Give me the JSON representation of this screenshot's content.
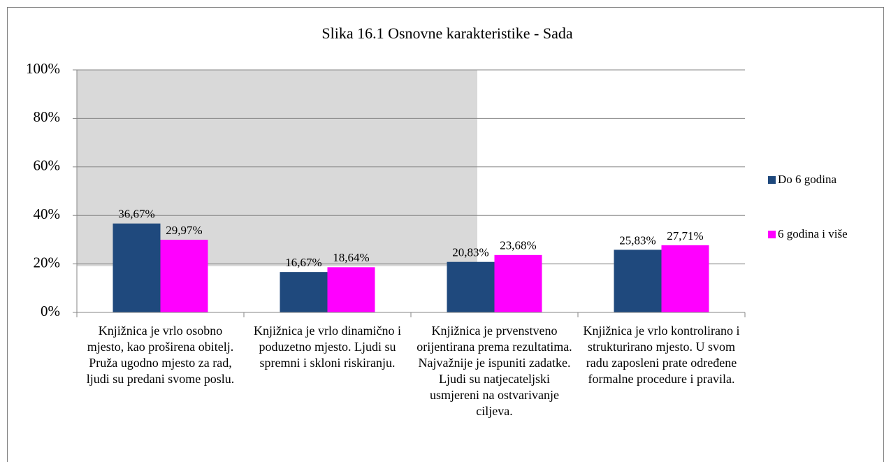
{
  "chart_data": {
    "type": "bar",
    "title": "Slika 16.1 Osnovne karakteristike - Sada",
    "categories": [
      "Knjižnica je vrlo osobno mjesto, kao proširena obitelj. Pruža ugodno mjesto za rad, ljudi su predani svome poslu.",
      "Knjižnica je vrlo dinamično i poduzetno mjesto. Ljudi su spremni i skloni riskiranju.",
      "Knjižnica je prvenstveno orijentirana prema rezultatima. Najvažnije je ispuniti zadatke. Ljudi su natjecateljski usmjereni na ostvarivanje ciljeva.",
      "Knjižnica je vrlo kontrolirano i strukturirano mjesto.  U svom radu zaposleni prate određene formalne procedure i pravila."
    ],
    "series": [
      {
        "name": "Do 6 godina",
        "color": "#1f497d",
        "values": [
          36.67,
          16.67,
          20.83,
          25.83
        ],
        "value_labels": [
          "36,67%",
          "16,67%",
          "20,83%",
          "25,83%"
        ]
      },
      {
        "name": "6 godina i više",
        "color": "#ff00ff",
        "values": [
          29.97,
          18.64,
          23.68,
          27.71
        ],
        "value_labels": [
          "29,97%",
          "18,64%",
          "23,68%",
          "27,71%"
        ]
      }
    ],
    "ylim": [
      0,
      100
    ],
    "yticks": [
      {
        "value": 0,
        "label": "0%"
      },
      {
        "value": 20,
        "label": "20%"
      },
      {
        "value": 40,
        "label": "40%"
      },
      {
        "value": 60,
        "label": "60%"
      },
      {
        "value": 80,
        "label": "80%"
      },
      {
        "value": 100,
        "label": "100%"
      }
    ],
    "grid": true,
    "legend": "right"
  }
}
